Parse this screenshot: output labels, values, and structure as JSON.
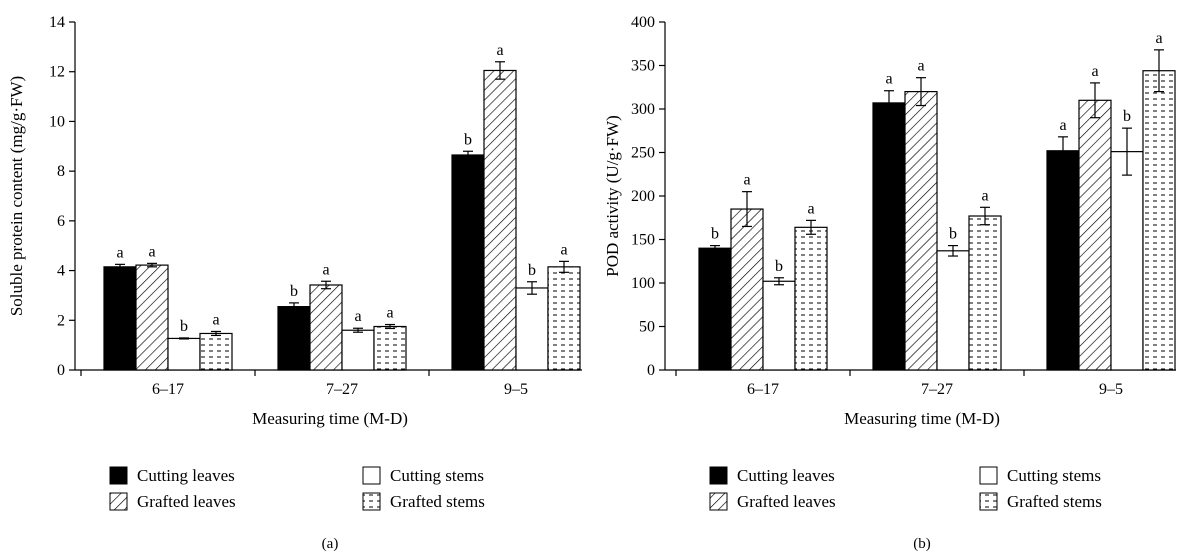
{
  "legend": {
    "cutting_leaves": "Cutting leaves",
    "cutting_stems": "Cutting stems",
    "grafted_leaves": "Grafted leaves",
    "grafted_stems": "Grafted stems"
  },
  "colors": {
    "bar_outline": "#000000",
    "background": "#ffffff",
    "solid_fill": "#000000"
  },
  "chart_data": [
    {
      "type": "bar",
      "panel_label": "(a)",
      "categories": [
        "6–17",
        "7–27",
        "9–5"
      ],
      "xlabel": "Measuring time (M-D)",
      "ylabel": "Soluble protein content (mg/g·FW)",
      "ylim": [
        0,
        14
      ],
      "yticks": [
        "0",
        "2",
        "4",
        "6",
        "8",
        "10",
        "12",
        "14"
      ],
      "series": [
        {
          "name": "Cutting leaves",
          "pattern": "solid",
          "values": [
            4.15,
            2.55,
            8.65
          ],
          "errors": [
            0.1,
            0.15,
            0.15
          ],
          "labels": [
            "a",
            "b",
            "b"
          ]
        },
        {
          "name": "Grafted leaves",
          "pattern": "diagonal",
          "values": [
            4.22,
            3.42,
            12.05
          ],
          "errors": [
            0.07,
            0.15,
            0.35
          ],
          "labels": [
            "a",
            "a",
            "a"
          ]
        },
        {
          "name": "Cutting stems",
          "pattern": "empty",
          "values": [
            1.27,
            1.6,
            3.3
          ],
          "errors": [
            0.02,
            0.08,
            0.25
          ],
          "labels": [
            "b",
            "a",
            "b"
          ]
        },
        {
          "name": "Grafted stems",
          "pattern": "dashed",
          "values": [
            1.47,
            1.75,
            4.15
          ],
          "errors": [
            0.08,
            0.08,
            0.22
          ],
          "labels": [
            "a",
            "a",
            "a"
          ]
        }
      ]
    },
    {
      "type": "bar",
      "panel_label": "(b)",
      "categories": [
        "6–17",
        "7–27",
        "9–5"
      ],
      "xlabel": "Measuring time (M-D)",
      "ylabel": "POD activity (U/g·FW)",
      "ylim": [
        0,
        400
      ],
      "yticks": [
        "0",
        "50",
        "100",
        "150",
        "200",
        "250",
        "300",
        "350",
        "400"
      ],
      "series": [
        {
          "name": "Cutting leaves",
          "pattern": "solid",
          "values": [
            140,
            307,
            252
          ],
          "errors": [
            3,
            14,
            16
          ],
          "labels": [
            "b",
            "a",
            "a"
          ]
        },
        {
          "name": "Grafted leaves",
          "pattern": "diagonal",
          "values": [
            185,
            320,
            310
          ],
          "errors": [
            20,
            16,
            20
          ],
          "labels": [
            "a",
            "a",
            "a"
          ]
        },
        {
          "name": "Cutting stems",
          "pattern": "empty",
          "values": [
            102,
            137,
            251
          ],
          "errors": [
            4,
            6,
            27
          ],
          "labels": [
            "b",
            "b",
            "b"
          ]
        },
        {
          "name": "Grafted stems",
          "pattern": "dashed",
          "values": [
            164,
            177,
            344
          ],
          "errors": [
            8,
            10,
            24
          ],
          "labels": [
            "a",
            "a",
            "a"
          ]
        }
      ]
    }
  ]
}
